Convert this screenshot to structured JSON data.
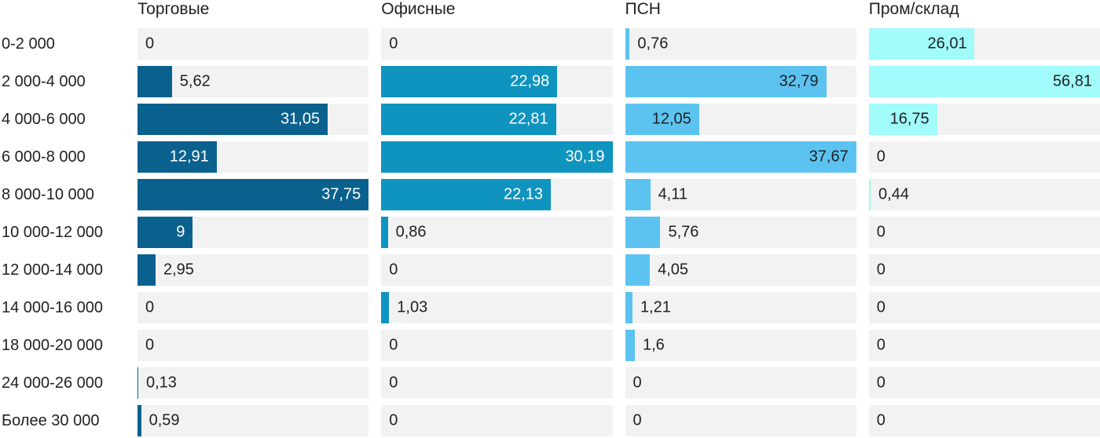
{
  "chart_data": {
    "type": "bar",
    "orientation": "horizontal",
    "title": "",
    "xlabel": "",
    "ylabel": "",
    "categories": [
      "0-2 000",
      "2 000-4 000",
      "4 000-6 000",
      "6 000-8 000",
      "8 000-10 000",
      "10 000-12 000",
      "12 000-14 000",
      "14 000-16 000",
      "18 000-20 000",
      "24 000-26 000",
      "Более 30 000"
    ],
    "series": [
      {
        "name": "Торговые",
        "color": "#0a618e",
        "label_color_on_bar": "#ffffff",
        "values": [
          0,
          5.62,
          31.05,
          12.91,
          37.75,
          9,
          2.95,
          0,
          0,
          0.13,
          0.59
        ],
        "labels": [
          "0",
          "5,62",
          "31,05",
          "12,91",
          "37,75",
          "9",
          "2,95",
          "0",
          "0",
          "0,13",
          "0,59"
        ]
      },
      {
        "name": "Офисные",
        "color": "#0f94c0",
        "label_color_on_bar": "#ffffff",
        "values": [
          0,
          22.98,
          22.81,
          30.19,
          22.13,
          0.86,
          0,
          1.03,
          0,
          0,
          0
        ],
        "labels": [
          "0",
          "22,98",
          "22,81",
          "30,19",
          "22,13",
          "0,86",
          "0",
          "1,03",
          "0",
          "0",
          "0"
        ]
      },
      {
        "name": "ПСН",
        "color": "#5cc3f0",
        "label_color_on_bar": "#1f2023",
        "values": [
          0.76,
          32.79,
          12.05,
          37.67,
          4.11,
          5.76,
          4.05,
          1.21,
          1.6,
          0,
          0
        ],
        "labels": [
          "0,76",
          "32,79",
          "12,05",
          "37,67",
          "4,11",
          "5,76",
          "4,05",
          "1,21",
          "1,6",
          "0",
          "0"
        ]
      },
      {
        "name": "Пром/склад",
        "color": "#a0fbfa",
        "label_color_on_bar": "#1f2023",
        "values": [
          26.01,
          56.81,
          16.75,
          0,
          0.44,
          0,
          0,
          0,
          0,
          0,
          0
        ],
        "labels": [
          "26,01",
          "56,81",
          "16,75",
          "0",
          "0,44",
          "0",
          "0",
          "0",
          "0",
          "0",
          "0"
        ]
      }
    ],
    "layout": {
      "value_axis": "each column scaled independently, column max = full track width",
      "grid": "off",
      "legend": "column headers on top",
      "track_color": "#f2f2f2",
      "text_color": "#1f2023",
      "background": "#ffffff"
    }
  }
}
